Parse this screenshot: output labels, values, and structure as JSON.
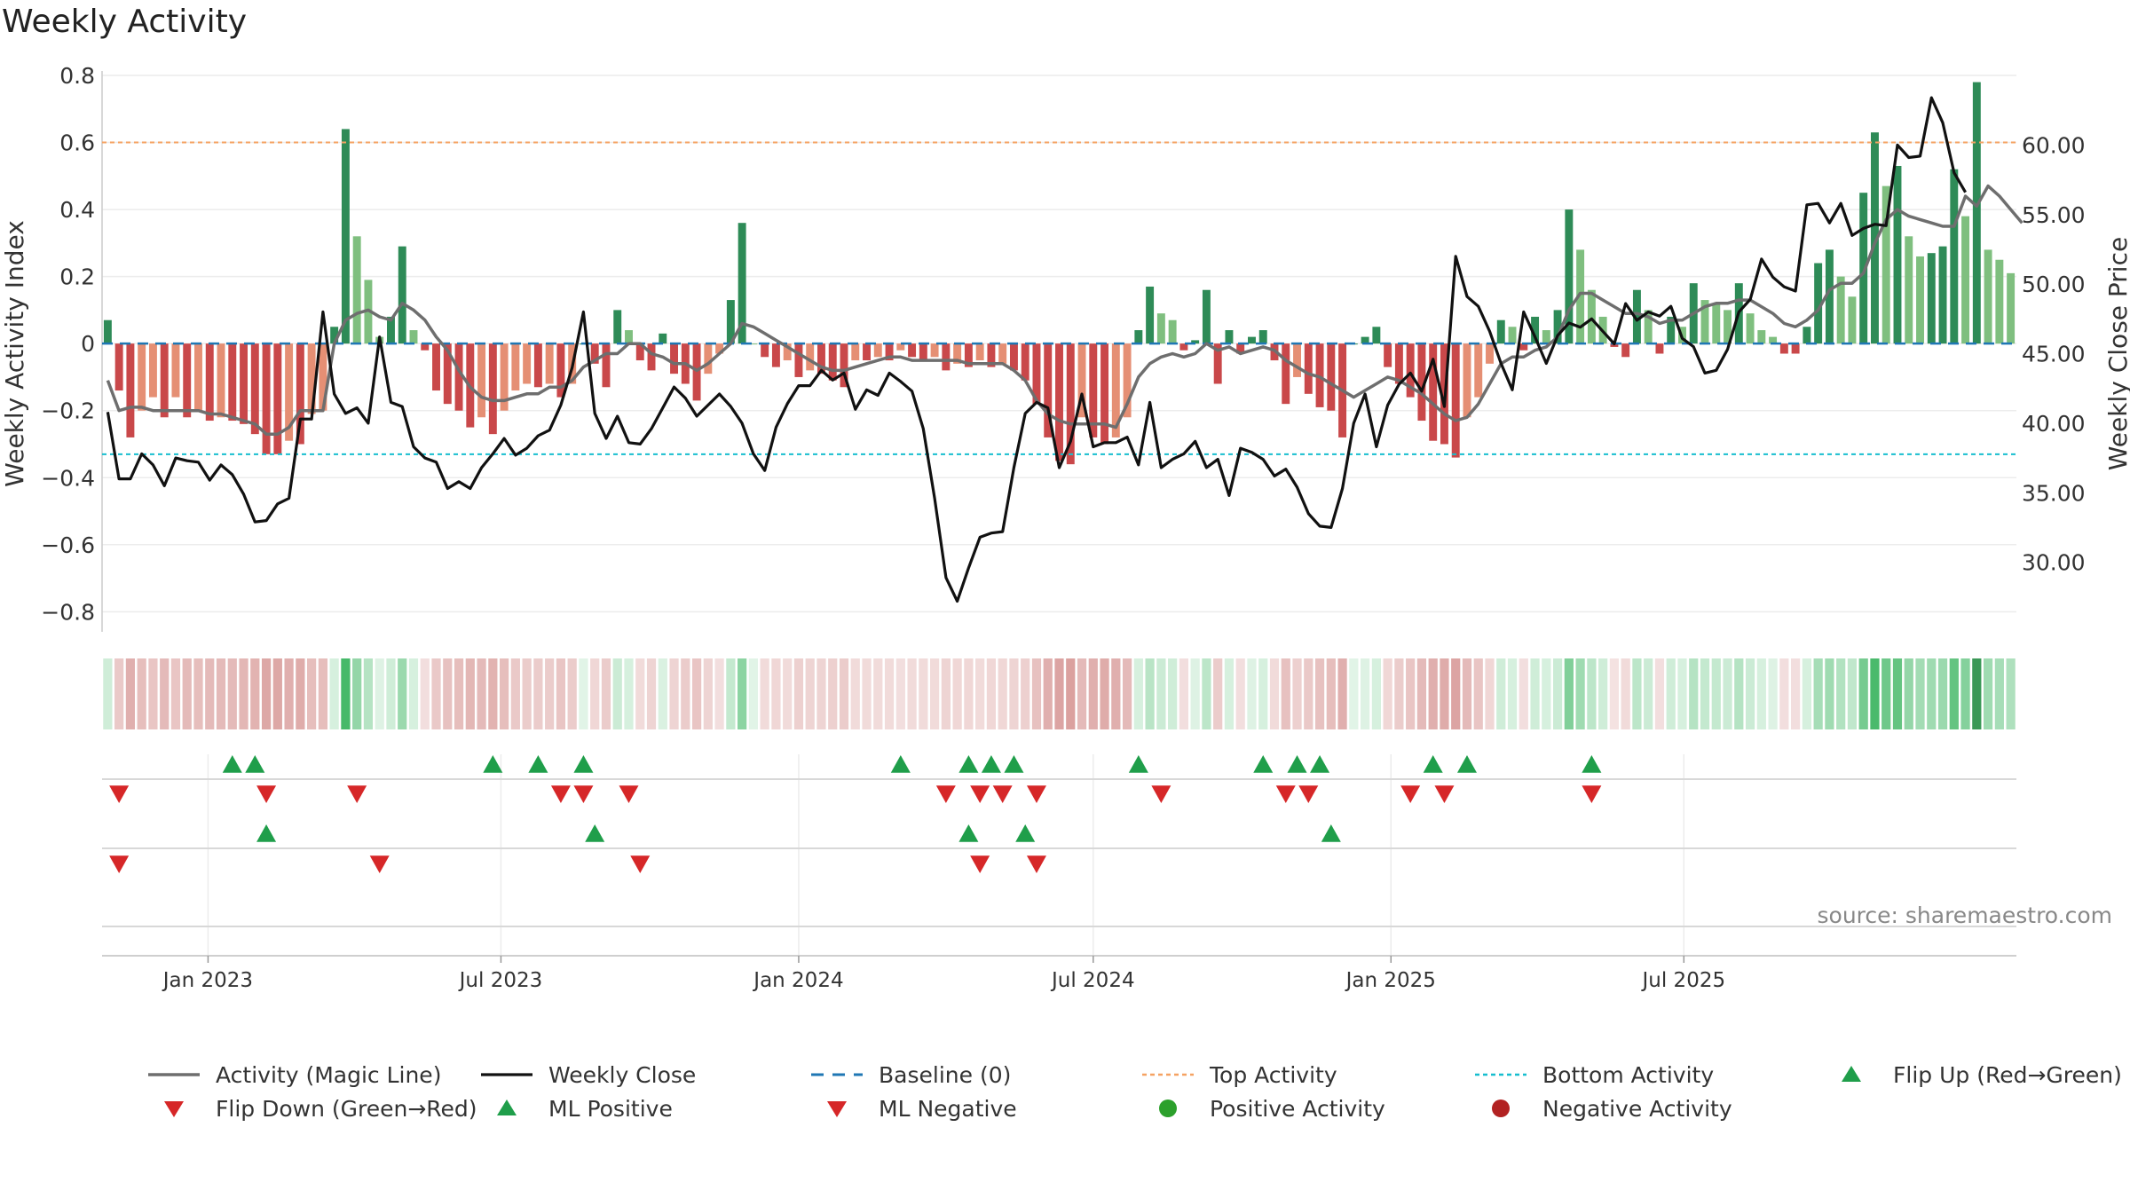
{
  "title": "Weekly Activity",
  "source_text": "source: sharemaestro.com",
  "colors": {
    "pos_dark": "#2e8b57",
    "pos_light": "#7fbf7f",
    "neg_dark": "#c9484a",
    "neg_light": "#e58f74",
    "magic": "#6e6e6e",
    "close": "#111111",
    "baseline": "#1f77b4",
    "top": "#f5a262",
    "bottom": "#17becf",
    "up": "#1f9e4a",
    "down": "#d62728"
  },
  "chart_data": {
    "type": "bar",
    "start_date": "2022-10-31",
    "week_step_days": 7,
    "left_axis": {
      "label": "Weekly Activity Index",
      "range": [
        -0.86,
        0.8
      ],
      "ticks": [
        0.8,
        0.6,
        0.4,
        0.2,
        0,
        -0.2,
        -0.4,
        -0.6,
        -0.8
      ],
      "tick_labels": [
        "0.8",
        "0.6",
        "0.4",
        "0.2",
        "0",
        "−0.2",
        "−0.4",
        "−0.6",
        "−0.8"
      ]
    },
    "right_axis": {
      "label": "Weekly Close Price",
      "range": [
        25,
        65
      ],
      "ticks": [
        60,
        55,
        50,
        45,
        40,
        35,
        30
      ],
      "tick_labels": [
        "60.00",
        "55.00",
        "50.00",
        "45.00",
        "40.00",
        "35.00",
        "30.00"
      ]
    },
    "x_ticks": [
      {
        "label": "Jan 2023",
        "date": "2023-01-01"
      },
      {
        "label": "Jul 2023",
        "date": "2023-07-01"
      },
      {
        "label": "Jan 2024",
        "date": "2024-01-01"
      },
      {
        "label": "Jul 2024",
        "date": "2024-07-01"
      },
      {
        "label": "Jan 2025",
        "date": "2025-01-01"
      },
      {
        "label": "Jul 2025",
        "date": "2025-07-01"
      }
    ],
    "top_activity": 0.6,
    "bottom_activity": -0.33,
    "activity": [
      0.07,
      -0.14,
      -0.28,
      -0.2,
      -0.16,
      -0.22,
      -0.16,
      -0.22,
      -0.2,
      -0.23,
      -0.22,
      -0.23,
      -0.24,
      -0.27,
      -0.33,
      -0.33,
      -0.29,
      -0.3,
      -0.21,
      -0.2,
      0.05,
      0.64,
      0.32,
      0.19,
      0.02,
      0.08,
      0.29,
      0.04,
      -0.02,
      -0.14,
      -0.18,
      -0.2,
      -0.25,
      -0.22,
      -0.27,
      -0.2,
      -0.14,
      -0.12,
      -0.13,
      -0.12,
      -0.16,
      -0.12,
      0.0,
      -0.06,
      -0.13,
      0.1,
      0.04,
      -0.05,
      -0.08,
      0.03,
      -0.09,
      -0.12,
      -0.17,
      -0.09,
      -0.03,
      0.13,
      0.36,
      0.0,
      -0.04,
      -0.07,
      -0.05,
      -0.1,
      -0.08,
      -0.09,
      -0.11,
      -0.13,
      -0.05,
      -0.05,
      -0.04,
      -0.05,
      -0.02,
      -0.04,
      -0.05,
      -0.04,
      -0.08,
      -0.06,
      -0.07,
      -0.05,
      -0.07,
      -0.06,
      -0.08,
      -0.11,
      -0.18,
      -0.28,
      -0.35,
      -0.36,
      -0.22,
      -0.28,
      -0.3,
      -0.28,
      -0.22,
      0.04,
      0.17,
      0.09,
      0.07,
      -0.02,
      0.01,
      0.16,
      -0.12,
      0.04,
      -0.03,
      0.02,
      0.04,
      -0.05,
      -0.18,
      -0.1,
      -0.15,
      -0.19,
      -0.2,
      -0.28,
      0.0,
      0.02,
      0.05,
      -0.07,
      -0.12,
      -0.16,
      -0.23,
      -0.29,
      -0.3,
      -0.34,
      -0.22,
      -0.16,
      -0.06,
      0.07,
      0.05,
      -0.02,
      0.08,
      0.04,
      0.1,
      0.4,
      0.28,
      0.16,
      0.08,
      -0.01,
      -0.04,
      0.16,
      0.1,
      -0.03,
      0.08,
      0.05,
      0.18,
      0.13,
      0.12,
      0.1,
      0.18,
      0.09,
      0.04,
      0.02,
      -0.03,
      -0.03,
      0.05,
      0.24,
      0.28,
      0.2,
      0.14,
      0.45,
      0.63,
      0.47,
      0.53,
      0.32,
      0.26,
      0.27,
      0.29,
      0.52,
      0.38,
      0.78,
      0.28,
      0.25,
      0.21
    ],
    "magic_line": [
      -0.11,
      -0.2,
      -0.19,
      -0.19,
      -0.2,
      -0.2,
      -0.2,
      -0.2,
      -0.2,
      -0.21,
      -0.21,
      -0.22,
      -0.23,
      -0.24,
      -0.27,
      -0.27,
      -0.25,
      -0.2,
      -0.2,
      -0.2,
      0.0,
      0.07,
      0.09,
      0.1,
      0.08,
      0.07,
      0.12,
      0.1,
      0.07,
      0.02,
      -0.02,
      -0.08,
      -0.13,
      -0.16,
      -0.17,
      -0.17,
      -0.16,
      -0.15,
      -0.15,
      -0.13,
      -0.13,
      -0.11,
      -0.07,
      -0.05,
      -0.03,
      -0.03,
      0.0,
      0.0,
      -0.03,
      -0.04,
      -0.06,
      -0.06,
      -0.08,
      -0.06,
      -0.03,
      0.0,
      0.06,
      0.05,
      0.03,
      0.01,
      -0.01,
      -0.03,
      -0.05,
      -0.07,
      -0.08,
      -0.08,
      -0.07,
      -0.06,
      -0.05,
      -0.04,
      -0.04,
      -0.05,
      -0.05,
      -0.05,
      -0.05,
      -0.05,
      -0.06,
      -0.06,
      -0.06,
      -0.06,
      -0.08,
      -0.11,
      -0.17,
      -0.21,
      -0.23,
      -0.24,
      -0.24,
      -0.24,
      -0.24,
      -0.25,
      -0.18,
      -0.1,
      -0.06,
      -0.04,
      -0.03,
      -0.04,
      -0.03,
      0.0,
      -0.02,
      -0.01,
      -0.03,
      -0.02,
      -0.01,
      -0.02,
      -0.05,
      -0.07,
      -0.09,
      -0.1,
      -0.12,
      -0.14,
      -0.16,
      -0.14,
      -0.12,
      -0.1,
      -0.11,
      -0.13,
      -0.15,
      -0.18,
      -0.21,
      -0.23,
      -0.22,
      -0.18,
      -0.12,
      -0.06,
      -0.04,
      -0.04,
      -0.02,
      -0.01,
      0.02,
      0.1,
      0.15,
      0.15,
      0.13,
      0.11,
      0.09,
      0.09,
      0.08,
      0.06,
      0.07,
      0.07,
      0.09,
      0.11,
      0.12,
      0.12,
      0.13,
      0.13,
      0.11,
      0.09,
      0.06,
      0.05,
      0.07,
      0.1,
      0.16,
      0.18,
      0.18,
      0.21,
      0.3,
      0.37,
      0.4,
      0.38,
      0.37,
      0.36,
      0.35,
      0.35,
      0.44,
      0.41,
      0.47,
      0.44,
      0.4,
      0.36
    ],
    "weekly_close": [
      40.8,
      36.0,
      36.0,
      37.8,
      37.0,
      35.5,
      37.5,
      37.3,
      37.2,
      35.9,
      37.0,
      36.3,
      34.9,
      32.9,
      33.0,
      34.2,
      34.6,
      40.3,
      40.3,
      48.0,
      42.1,
      40.7,
      41.1,
      40.0,
      46.2,
      41.5,
      41.2,
      38.3,
      37.5,
      37.2,
      35.3,
      35.8,
      35.3,
      36.8,
      37.8,
      38.9,
      37.7,
      38.2,
      39.1,
      39.5,
      41.3,
      44.0,
      48.0,
      40.7,
      38.9,
      40.5,
      38.6,
      38.5,
      39.6,
      41.1,
      42.6,
      41.8,
      40.5,
      41.3,
      42.1,
      41.2,
      40.0,
      37.8,
      36.6,
      39.7,
      41.4,
      42.7,
      42.7,
      43.8,
      43.1,
      43.6,
      41.0,
      42.4,
      42.0,
      43.6,
      43.0,
      42.3,
      39.6,
      34.6,
      28.9,
      27.2,
      29.6,
      31.8,
      32.1,
      32.2,
      36.8,
      40.7,
      41.5,
      41.1,
      36.8,
      38.7,
      42.1,
      38.3,
      38.6,
      38.6,
      39.0,
      37.0,
      41.5,
      36.8,
      37.4,
      37.8,
      38.7,
      36.8,
      37.4,
      34.8,
      38.2,
      37.9,
      37.4,
      36.2,
      36.7,
      35.4,
      33.5,
      32.6,
      32.5,
      35.3,
      40.0,
      42.1,
      38.3,
      41.3,
      42.8,
      43.6,
      42.3,
      44.6,
      41.2,
      52.0,
      49.1,
      48.4,
      46.6,
      44.3,
      42.4,
      48.0,
      46.2,
      44.3,
      46.3,
      47.2,
      46.9,
      47.5,
      46.6,
      45.7,
      48.6,
      47.4,
      48.0,
      47.7,
      48.4,
      46.1,
      45.5,
      43.6,
      43.8,
      45.3,
      48.0,
      48.9,
      51.8,
      50.5,
      49.8,
      49.5,
      55.7,
      55.8,
      54.4,
      55.8,
      53.5,
      54.0,
      54.3,
      54.2,
      60.0,
      59.1,
      59.2,
      63.4,
      61.6,
      58.0,
      56.6
    ]
  },
  "flip_up_rows": [
    [
      "2023-01-16",
      "2023-01-30",
      "2023-06-26",
      "2023-07-24",
      "2023-08-21",
      "2024-03-04",
      "2024-04-15",
      "2024-04-29",
      "2024-05-13",
      "2024-07-29",
      "2024-10-14",
      "2024-11-04",
      "2024-11-18",
      "2025-01-27",
      "2025-02-17",
      "2025-05-05"
    ],
    [
      "2023-02-06",
      "2023-08-28",
      "2024-04-15",
      "2024-05-20",
      "2024-11-25"
    ]
  ],
  "flip_down_rows": [
    [
      "2022-11-07",
      "2023-02-06",
      "2023-04-03",
      "2023-08-07",
      "2023-08-21",
      "2023-09-18",
      "2024-04-01",
      "2024-04-22",
      "2024-05-06",
      "2024-05-27",
      "2024-08-12",
      "2024-10-28",
      "2024-11-11",
      "2025-01-13",
      "2025-02-03",
      "2025-05-05"
    ],
    [
      "2022-11-07",
      "2023-04-17",
      "2023-09-25",
      "2024-04-22",
      "2024-05-27"
    ]
  ],
  "legend": [
    {
      "label": "Activity (Magic Line)",
      "kind": "magic"
    },
    {
      "label": "Weekly Close",
      "kind": "close"
    },
    {
      "label": "Baseline (0)",
      "kind": "baseline"
    },
    {
      "label": "Top Activity",
      "kind": "top"
    },
    {
      "label": "Bottom Activity",
      "kind": "bottom"
    },
    {
      "label": "Flip Up (Red→Green)",
      "kind": "flipup"
    },
    {
      "label": "Flip Down (Green→Red)",
      "kind": "flipdown"
    },
    {
      "label": "ML Positive",
      "kind": "mlpos"
    },
    {
      "label": "ML Negative",
      "kind": "mlneg"
    },
    {
      "label": "Positive Activity",
      "kind": "posdot"
    },
    {
      "label": "Negative Activity",
      "kind": "negdot"
    }
  ]
}
